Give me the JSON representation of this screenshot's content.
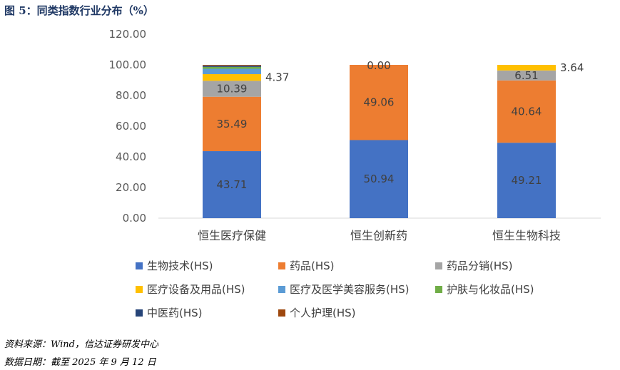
{
  "title": "图 5：同类指数行业分布（%）",
  "source": "资料来源：Wind，信达证券研发中心",
  "date": "数据日期：截至 2025 年 9 月 12 日",
  "chart_data": {
    "type": "bar",
    "stacked": true,
    "title": "同类指数行业分布（%）",
    "categories": [
      "恒生医疗保健",
      "恒生创新药",
      "恒生生物科技"
    ],
    "ylim": [
      0,
      120
    ],
    "yticks": [
      "0.00",
      "20.00",
      "40.00",
      "60.00",
      "80.00",
      "100.00",
      "120.00"
    ],
    "legend_position": "bottom",
    "series": [
      {
        "name": "生物技术(HS)",
        "color": "#4472c4",
        "values": [
          43.71,
          50.94,
          49.21
        ],
        "labels": [
          "43.71",
          "50.94",
          "49.21"
        ]
      },
      {
        "name": "药品(HS)",
        "color": "#ed7d31",
        "values": [
          35.49,
          49.06,
          40.64
        ],
        "labels": [
          "35.49",
          "49.06",
          "40.64"
        ]
      },
      {
        "name": "药品分销(HS)",
        "color": "#a5a5a5",
        "values": [
          10.39,
          0,
          6.51
        ],
        "labels": [
          "10.39",
          "",
          "6.51"
        ]
      },
      {
        "name": "医疗设备及用品(HS)",
        "color": "#ffc000",
        "values": [
          4.37,
          0,
          3.64
        ],
        "labels": [
          "4.37",
          "0.00",
          "3.64"
        ]
      },
      {
        "name": "医疗及医学美容服务(HS)",
        "color": "#5b9bd5",
        "values": [
          3.5,
          0,
          0
        ],
        "labels": [
          "",
          "",
          ""
        ]
      },
      {
        "name": "护肤与化妆品(HS)",
        "color": "#70ad47",
        "values": [
          1.2,
          0,
          0
        ],
        "labels": [
          "",
          "",
          ""
        ]
      },
      {
        "name": "中医药(HS)",
        "color": "#264478",
        "values": [
          0.8,
          0,
          0
        ],
        "labels": [
          "",
          "",
          ""
        ]
      },
      {
        "name": "个人护理(HS)",
        "color": "#9e480e",
        "values": [
          0.5,
          0,
          0
        ],
        "labels": [
          "",
          "",
          ""
        ]
      }
    ]
  }
}
